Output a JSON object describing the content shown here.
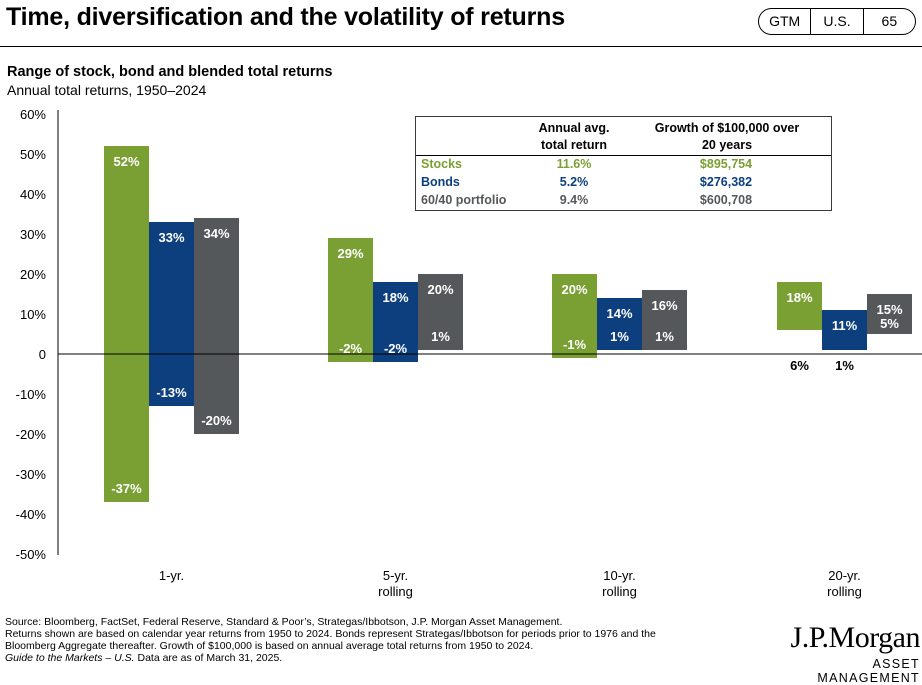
{
  "page": {
    "title": "Time, diversification and the volatility of returns",
    "badge": [
      "GTM",
      "U.S.",
      "65"
    ]
  },
  "colors": {
    "stocks": "#7aa033",
    "bonds": "#0d3f7f",
    "portfolio": "#55585a",
    "axis": "#000000"
  },
  "table": {
    "header_return": [
      "Annual avg.",
      "total return"
    ],
    "header_growth": [
      "Growth of $100,000 over",
      "20 years"
    ],
    "rows": [
      {
        "name": "Stocks",
        "ret": "11.6%",
        "growth": "$895,754",
        "color": "#7aa033"
      },
      {
        "name": "Bonds",
        "ret": "5.2%",
        "growth": "$276,382",
        "color": "#0d3f7f"
      },
      {
        "name": "60/40 portfolio",
        "ret": "9.4%",
        "growth": "$600,708",
        "color": "#55585a"
      }
    ]
  },
  "chart_data": {
    "type": "bar",
    "subtype": "floating-range",
    "title": "Range of stock, bond and blended total returns",
    "subtitle": "Annual total returns, 1950–2024",
    "ylim": [
      -50,
      60
    ],
    "yticks": [
      60,
      50,
      40,
      30,
      20,
      10,
      0,
      -10,
      -20,
      -30,
      -40,
      -50
    ],
    "ytick_labels": [
      "60%",
      "50%",
      "40%",
      "30%",
      "20%",
      "10%",
      "0",
      "-10%",
      "-20%",
      "-30%",
      "-40%",
      "-50%"
    ],
    "categories": [
      [
        "1-yr."
      ],
      [
        "5-yr.",
        "rolling"
      ],
      [
        "10-yr.",
        "rolling"
      ],
      [
        "20-yr.",
        "rolling"
      ]
    ],
    "series": [
      {
        "name": "Stocks",
        "color": "#7aa033",
        "max": [
          52,
          29,
          20,
          18
        ],
        "min": [
          -37,
          -2,
          -1,
          6
        ],
        "max_labels": [
          "52%",
          "29%",
          "20%",
          "18%"
        ],
        "min_labels": [
          "-37%",
          "-2%",
          "-1%",
          "6%"
        ]
      },
      {
        "name": "Bonds",
        "color": "#0d3f7f",
        "max": [
          33,
          18,
          14,
          11
        ],
        "min": [
          -13,
          -2,
          1,
          1
        ],
        "max_labels": [
          "33%",
          "18%",
          "14%",
          "11%"
        ],
        "min_labels": [
          "-13%",
          "-2%",
          "1%",
          "1%"
        ]
      },
      {
        "name": "60/40 portfolio",
        "color": "#55585a",
        "max": [
          34,
          20,
          16,
          15
        ],
        "min": [
          -20,
          1,
          1,
          5
        ],
        "max_labels": [
          "34%",
          "20%",
          "16%",
          "15%"
        ],
        "min_labels": [
          "-20%",
          "1%",
          "1%",
          "5%"
        ]
      }
    ],
    "grid": false,
    "legend": "top-right"
  },
  "footnote": {
    "lines": [
      "Source: Bloomberg, FactSet, Federal Reserve, Standard & Poor’s, Strategas/Ibbotson, J.P. Morgan Asset Management.",
      "Returns shown are based on calendar year returns from 1950 to 2024. Bonds represent Strategas/Ibbotson for periods prior to 1976 and the",
      "Bloomberg Aggregate thereafter. Growth of $100,000 is based on annual average total returns from 1950 to 2024."
    ],
    "italic": "Guide to the Markets – U.S.",
    "date_text": " Data are as of March 31, 2025."
  },
  "logo": {
    "name": "J.P.Morgan",
    "sub": "ASSET MANAGEMENT"
  }
}
